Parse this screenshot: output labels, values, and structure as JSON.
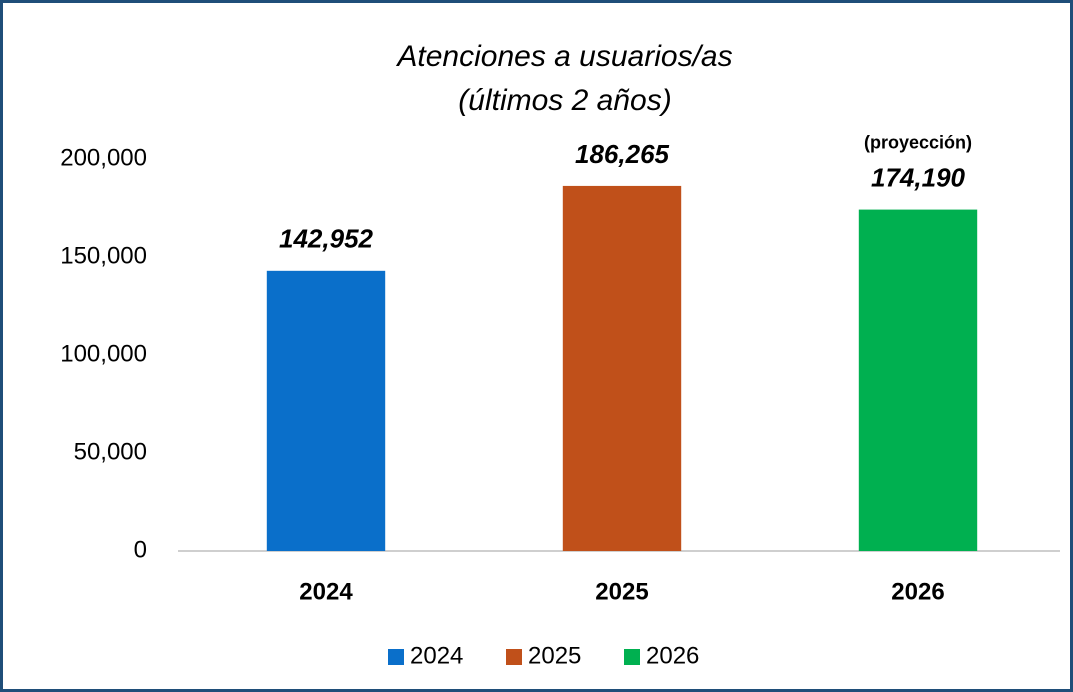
{
  "chart_data": {
    "type": "bar",
    "title": "Atenciones a usuarios/as",
    "subtitle": "(últimos 2 años)",
    "annotation": "(proyección)",
    "categories": [
      "2024",
      "2025",
      "2026"
    ],
    "values": [
      142952,
      186265,
      174190
    ],
    "value_labels": [
      "142,952",
      "186,265",
      "174,190"
    ],
    "colors": [
      "#0a6fca",
      "#c0501a",
      "#00b050"
    ],
    "ylim": [
      0,
      200000
    ],
    "yticks": [
      0,
      {
        "value": 50000,
        "label": "50,000"
      },
      {
        "value": 100000,
        "label": "100,000"
      },
      {
        "value": 150000,
        "label": "150,000"
      },
      {
        "value": 200000,
        "label": "200,000"
      }
    ],
    "grid": false,
    "legend": "bottom"
  }
}
